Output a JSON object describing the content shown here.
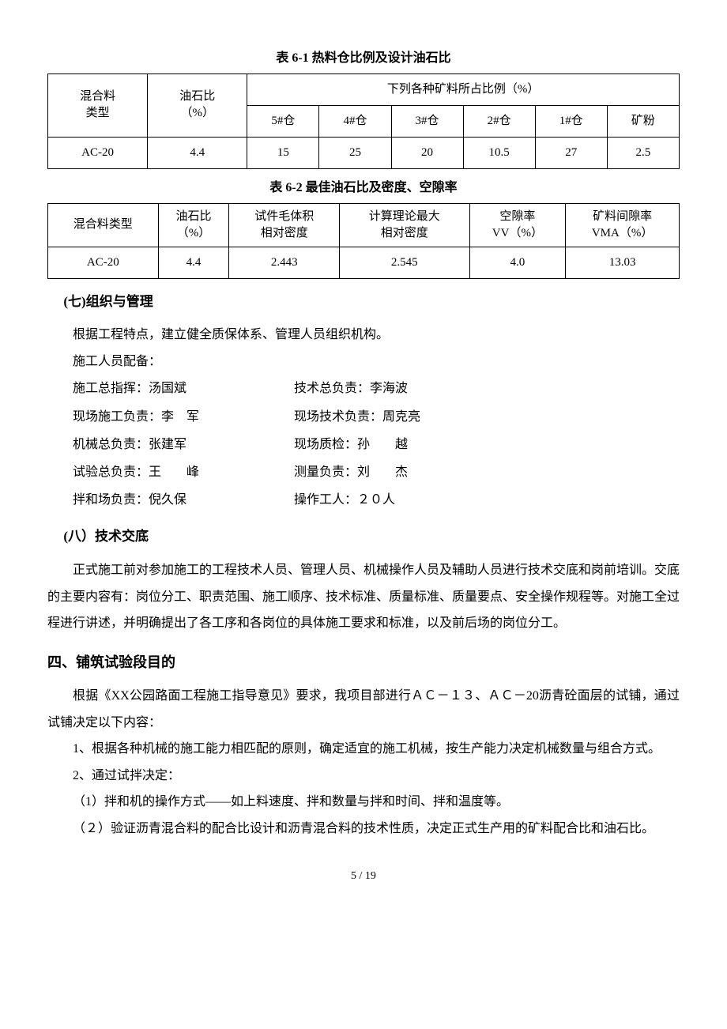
{
  "table61": {
    "title": "表 6-1   热料仓比例及设计油石比",
    "header_row1_col1": "混合料\n类型",
    "header_row1_col2": "油石比\n（%）",
    "header_row1_col3": "下列各种矿料所占比例（%）",
    "header_row2": [
      "5#仓",
      "4#仓",
      "3#仓",
      "2#仓",
      "1#仓",
      "矿粉"
    ],
    "data": [
      "AC-20",
      "4.4",
      "15",
      "25",
      "20",
      "10.5",
      "27",
      "2.5"
    ]
  },
  "table62": {
    "title": "表 6-2   最佳油石比及密度、空隙率",
    "header": [
      "混合料类型",
      "油石比\n（%）",
      "试件毛体积\n相对密度",
      "计算理论最大\n相对密度",
      "空隙率\nVV（%）",
      "矿料间隙率\nVMA（%）"
    ],
    "data": [
      "AC-20",
      "4.4",
      "2.443",
      "2.545",
      "4.0",
      "13.03"
    ]
  },
  "section7": {
    "heading": "(七)组织与管理",
    "p1": "根据工程特点，建立健全质保体系、管理人员组织机构。",
    "p2": "施工人员配备：",
    "personnel": [
      {
        "left": "施工总指挥：汤国斌",
        "right": "技术总负责：李海波"
      },
      {
        "left": "现场施工负责：李　军",
        "right": "现场技术负责：周克亮"
      },
      {
        "left": "机械总负责：张建军",
        "right": "现场质检：孙　　越"
      },
      {
        "left": "试验总负责：王　　峰",
        "right": "测量负责：刘　　杰"
      },
      {
        "left": "拌和场负责：倪久保",
        "right": "操作工人：２０人"
      }
    ]
  },
  "section8": {
    "heading": "(八）技术交底",
    "p1": "正式施工前对参加施工的工程技术人员、管理人员、机械操作人员及辅助人员进行技术交底和岗前培训。交底的主要内容有：岗位分工、职责范围、施工顺序、技术标准、质量标准、质量要点、安全操作规程等。对施工全过程进行讲述，并明确提出了各工序和各岗位的具体施工要求和标准，以及前后场的岗位分工。"
  },
  "section4": {
    "heading": "四、铺筑试验段目的",
    "p1": "根据《XX公园路面工程施工指导意见》要求，我项目部进行ＡＣ－１３、ＡＣ－20沥青砼面层的试铺，通过试铺决定以下内容：",
    "p2": "1、根据各种机械的施工能力相匹配的原则，确定适宜的施工机械，按生产能力决定机械数量与组合方式。",
    "p3": "2、通过试拌决定：",
    "p4": "（1）拌和机的操作方式——如上料速度、拌和数量与拌和时间、拌和温度等。",
    "p5": "（２）验证沥青混合料的配合比设计和沥青混合料的技术性质，决定正式生产用的矿料配合比和油石比。"
  },
  "page_number": "5 / 19"
}
